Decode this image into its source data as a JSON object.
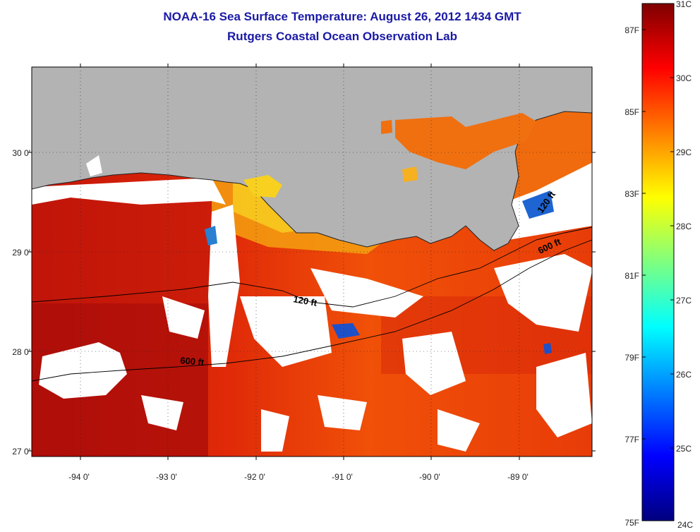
{
  "title": "NOAA-16 Sea Surface Temperature:  August 26, 2012 1434 GMT",
  "subtitle": "Rutgers Coastal Ocean Observation Lab",
  "map": {
    "lat_ticks": [
      "30 0'",
      "29 0'",
      "28 0'",
      "27 0'"
    ],
    "lon_ticks": [
      "-94 0'",
      "-93 0'",
      "-92 0'",
      "-91 0'",
      "-90 0'",
      "-89 0'"
    ],
    "contour_labels": [
      "120 ft",
      "120 ft",
      "600 ft",
      "600 ft"
    ],
    "land_color": "#b3b3b3",
    "cloud_color": "#ffffff"
  },
  "colorbar": {
    "celsius_labels": [
      "31C",
      "30C",
      "29C",
      "28C",
      "27C",
      "26C",
      "25C",
      "24C"
    ],
    "fahrenheit_labels": [
      "87F",
      "85F",
      "83F",
      "81F",
      "79F",
      "77F",
      "75F"
    ],
    "colormap": "jet",
    "range_c": [
      24,
      31
    ]
  }
}
